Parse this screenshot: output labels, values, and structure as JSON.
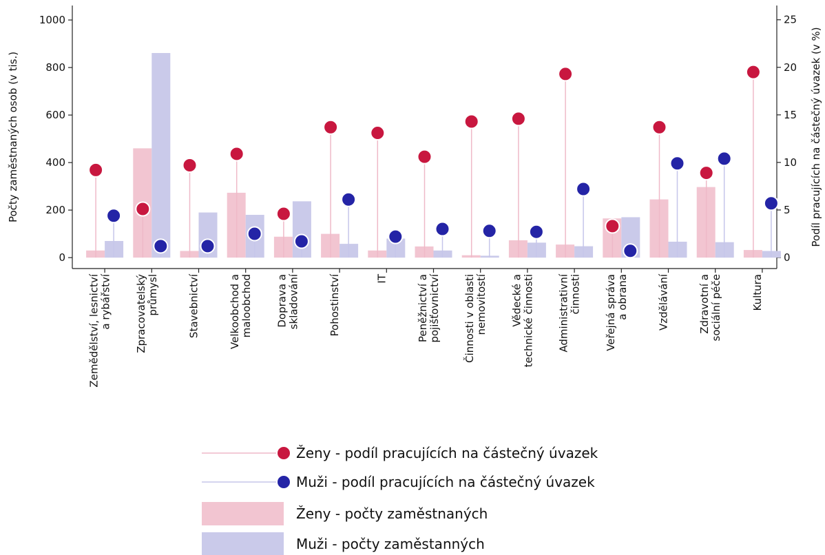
{
  "chart_data": {
    "type": "bar_lollipop",
    "y_label": "Počty zaměstnaných osob (v tis.)",
    "y2_label": "Podíl pracujících na částečný úvazek (v %)",
    "categories": [
      "Zemědělství, lesnictví\na rybářství",
      "Zpracovatelský\nprůmysl",
      "Stavebnictví",
      "Velkoobchod a\nmaloobchod",
      "Doprava a\nskladování",
      "Pohostinství",
      "IT",
      "Peněžnictví a\npojišťovnictví",
      "Činnosti v oblasti\nnemovitostí",
      "Vědecké a\ntechnické činnosti",
      "Administrativní\nčinnosti",
      "Veřejná správa\na obrana",
      "Vzdělávání",
      "Zdravotní a\nsociální péče",
      "Kultura"
    ],
    "series": [
      {
        "name": "Ženy - podíl pracujících na částečný úvazek",
        "kind": "lollipop",
        "axis": "y2",
        "color": "#c8173f",
        "stem_color": "#efb9c8",
        "values": [
          9.2,
          5.1,
          9.7,
          10.9,
          4.6,
          13.7,
          13.1,
          10.6,
          14.3,
          14.6,
          19.3,
          3.3,
          13.7,
          8.9,
          19.5
        ]
      },
      {
        "name": "Muži - podíl pracujících na částečný úvazek",
        "kind": "lollipop",
        "axis": "y2",
        "color": "#2424a6",
        "stem_color": "#c6c6ea",
        "values": [
          4.4,
          1.2,
          1.2,
          2.5,
          1.7,
          6.1,
          2.2,
          3.0,
          2.8,
          2.7,
          7.2,
          0.7,
          9.9,
          10.4,
          5.7
        ]
      },
      {
        "name": "Ženy - počty zaměstnaných",
        "kind": "bar",
        "color": "#f2c5d1",
        "values": [
          30,
          460,
          28,
          273,
          88,
          100,
          30,
          47,
          10,
          73,
          55,
          165,
          245,
          297,
          32
        ]
      },
      {
        "name": "Muži - počty zaměstanných",
        "kind": "bar",
        "color": "#cacaea",
        "values": [
          70,
          861,
          190,
          180,
          237,
          58,
          80,
          30,
          8,
          63,
          48,
          170,
          67,
          65,
          28
        ]
      }
    ],
    "ylim": [
      -46,
      1061
    ],
    "yticks": [
      0,
      200,
      400,
      600,
      800,
      1000
    ],
    "y2lim": [
      -1.16,
      26.5
    ],
    "y2ticks": [
      0,
      5,
      10,
      15,
      20,
      25
    ]
  }
}
